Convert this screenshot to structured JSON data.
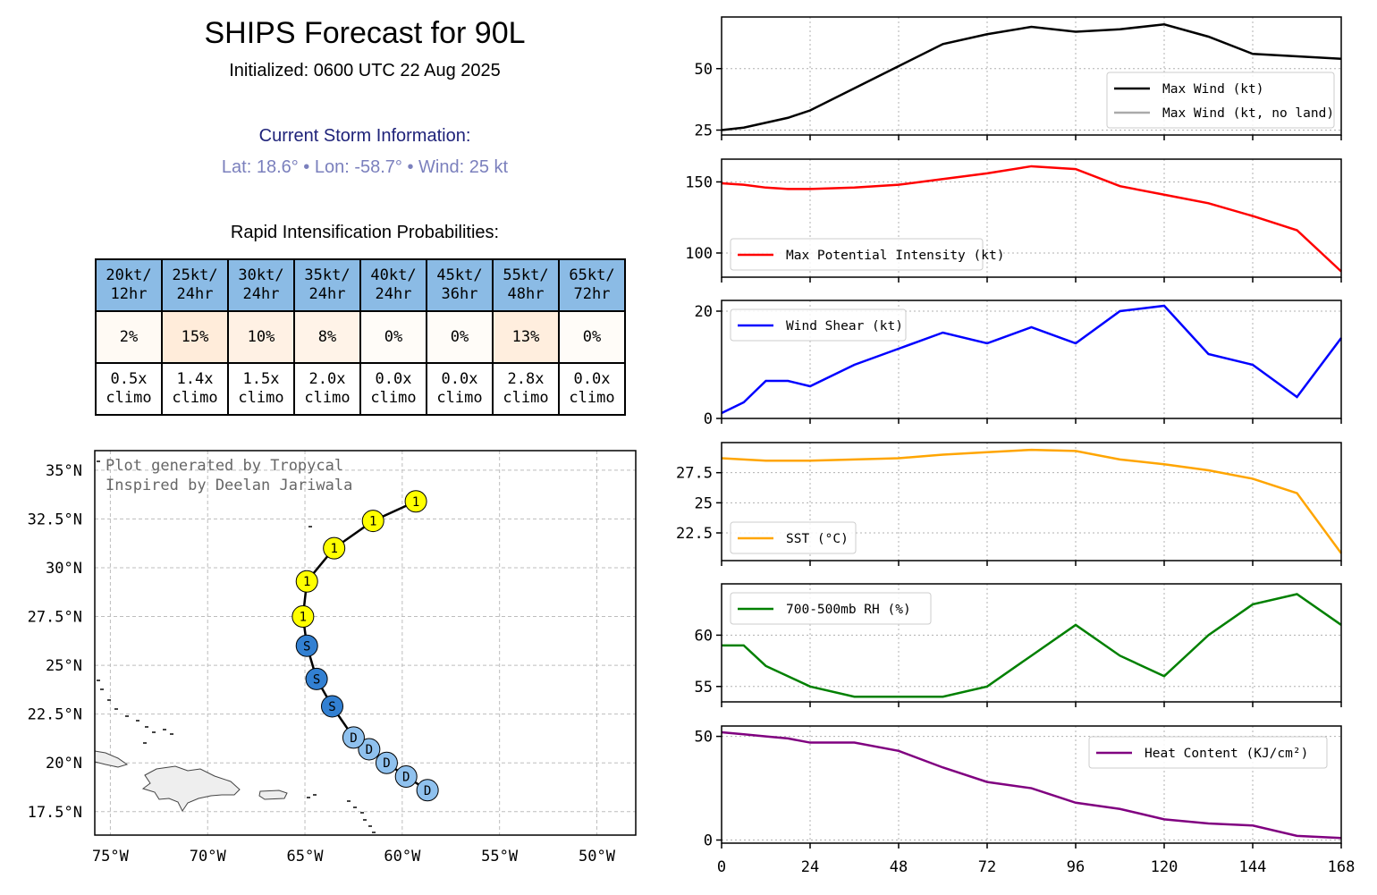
{
  "header": {
    "title": "SHIPS Forecast for 90L",
    "initialized": "Initialized: 0600 UTC 22 Aug 2025",
    "current_heading": "Current Storm Information:",
    "current_info": "Lat: 18.6°  • Lon: -58.7°  • Wind: 25 kt",
    "ri_heading": "Rapid Intensification Probabilities:"
  },
  "ri_table": {
    "columns": [
      "20kt/ 12hr",
      "25kt/ 24hr",
      "30kt/ 24hr",
      "35kt/ 24hr",
      "40kt/ 24hr",
      "45kt/ 36hr",
      "55kt/ 48hr",
      "65kt/ 72hr"
    ],
    "probabilities": [
      "2%",
      "15%",
      "10%",
      "8%",
      "0%",
      "0%",
      "13%",
      "0%"
    ],
    "prob_values": [
      2,
      15,
      10,
      8,
      0,
      0,
      13,
      0
    ],
    "climo": [
      "0.5x climo",
      "1.4x climo",
      "1.5x climo",
      "2.0x climo",
      "0.0x climo",
      "0.0x climo",
      "2.8x climo",
      "0.0x climo"
    ]
  },
  "map": {
    "credit_line1": "Plot generated by Tropycal",
    "credit_line2": "Inspired by Deelan Jariwala",
    "lon_labels": [
      "75°W",
      "70°W",
      "65°W",
      "60°W",
      "55°W",
      "50°W"
    ],
    "lon_values": [
      -75,
      -70,
      -65,
      -60,
      -55,
      -50
    ],
    "lat_labels": [
      "35°N",
      "32.5°N",
      "30°N",
      "27.5°N",
      "25°N",
      "22.5°N",
      "20°N",
      "17.5°N"
    ],
    "lat_values": [
      35,
      32.5,
      30,
      27.5,
      25,
      22.5,
      20,
      17.5
    ],
    "track": [
      {
        "lat": 18.6,
        "lon": -58.7,
        "label": "D"
      },
      {
        "lat": 19.3,
        "lon": -59.8,
        "label": "D"
      },
      {
        "lat": 20.0,
        "lon": -60.8,
        "label": "D"
      },
      {
        "lat": 20.7,
        "lon": -61.7,
        "label": "D"
      },
      {
        "lat": 21.3,
        "lon": -62.5,
        "label": "D"
      },
      {
        "lat": 22.9,
        "lon": -63.6,
        "label": "S"
      },
      {
        "lat": 24.3,
        "lon": -64.4,
        "label": "S"
      },
      {
        "lat": 26.0,
        "lon": -64.9,
        "label": "S"
      },
      {
        "lat": 27.5,
        "lon": -65.1,
        "label": "1"
      },
      {
        "lat": 29.3,
        "lon": -64.9,
        "label": "1"
      },
      {
        "lat": 31.0,
        "lon": -63.5,
        "label": "1"
      },
      {
        "lat": 32.4,
        "lon": -61.5,
        "label": "1"
      },
      {
        "lat": 33.4,
        "lon": -59.3,
        "label": "1"
      }
    ],
    "colors": {
      "D": "#8fc1ee",
      "S": "#3280d2",
      "1": "#ffff00"
    }
  },
  "chart_data": [
    {
      "type": "line",
      "series": [
        {
          "name": "Max Wind (kt)",
          "color": "#000000",
          "x": [
            0,
            6,
            12,
            18,
            24,
            36,
            48,
            60,
            72,
            84,
            96,
            108,
            120,
            132,
            144,
            156,
            168
          ],
          "values": [
            25,
            26,
            28,
            30,
            33,
            42,
            51,
            60,
            64,
            67,
            65,
            66,
            68,
            63,
            56,
            55,
            54
          ]
        },
        {
          "name": "Max Wind (kt, no land)",
          "color": "#aaaaaa",
          "x": [],
          "values": []
        }
      ],
      "yticks": [
        25,
        50
      ],
      "ylim": [
        23,
        71
      ],
      "xlim": [
        0,
        168
      ],
      "legend": "lower-right",
      "grid": true
    },
    {
      "type": "line",
      "series": [
        {
          "name": "Max Potential Intensity (kt)",
          "color": "#ff0000",
          "x": [
            0,
            6,
            12,
            18,
            24,
            36,
            48,
            60,
            72,
            84,
            96,
            108,
            120,
            132,
            144,
            156,
            168
          ],
          "values": [
            149,
            148,
            146,
            145,
            145,
            146,
            148,
            152,
            156,
            161,
            159,
            147,
            141,
            135,
            126,
            116,
            87
          ]
        },
        {
          "name": "",
          "color": "#ff0000",
          "x": [],
          "values": []
        }
      ],
      "yticks": [
        100,
        150
      ],
      "ylim": [
        83,
        166
      ],
      "xlim": [
        0,
        168
      ],
      "legend": "lower-left",
      "grid": true
    },
    {
      "type": "line",
      "series": [
        {
          "name": "Wind Shear (kt)",
          "color": "#0000ff",
          "x": [
            0,
            6,
            12,
            18,
            24,
            36,
            48,
            60,
            72,
            84,
            96,
            108,
            120,
            132,
            144,
            156,
            168
          ],
          "values": [
            1,
            3,
            7,
            7,
            6,
            10,
            13,
            16,
            14,
            17,
            14,
            20,
            21,
            12,
            10,
            4,
            15
          ]
        }
      ],
      "yticks": [
        0,
        20
      ],
      "ylim": [
        0,
        22
      ],
      "xlim": [
        0,
        168
      ],
      "legend": "upper-left",
      "grid": true
    },
    {
      "type": "line",
      "series": [
        {
          "name": "SST (°C)",
          "color": "#ffa500",
          "x": [
            0,
            12,
            24,
            36,
            48,
            60,
            72,
            84,
            96,
            108,
            120,
            132,
            144,
            156,
            168
          ],
          "values": [
            28.7,
            28.5,
            28.5,
            28.6,
            28.7,
            29.0,
            29.2,
            29.4,
            29.3,
            28.6,
            28.2,
            27.7,
            27.0,
            25.8,
            20.8
          ]
        }
      ],
      "yticks": [
        22.5,
        25.0,
        27.5
      ],
      "ylim": [
        20.2,
        30.0
      ],
      "xlim": [
        0,
        168
      ],
      "legend": "lower-left",
      "grid": true
    },
    {
      "type": "line",
      "series": [
        {
          "name": "700-500mb RH (%)",
          "color": "#008000",
          "x": [
            0,
            6,
            12,
            24,
            36,
            48,
            60,
            72,
            84,
            96,
            108,
            120,
            132,
            144,
            156,
            168
          ],
          "values": [
            59,
            59,
            57,
            55,
            54,
            54,
            54,
            55,
            58,
            61,
            58,
            56,
            60,
            63,
            64,
            61
          ]
        }
      ],
      "yticks": [
        55,
        60
      ],
      "ylim": [
        53.5,
        65.0
      ],
      "xlim": [
        0,
        168
      ],
      "legend": "upper-left",
      "grid": true
    },
    {
      "type": "line",
      "series": [
        {
          "name": "Heat Content (KJ/cm²)",
          "color": "#800080",
          "x": [
            0,
            6,
            12,
            18,
            24,
            36,
            48,
            60,
            72,
            84,
            96,
            108,
            120,
            132,
            144,
            156,
            168
          ],
          "values": [
            52,
            51,
            50,
            49,
            47,
            47,
            43,
            35,
            28,
            25,
            18,
            15,
            10,
            8,
            7,
            2,
            1
          ]
        }
      ],
      "yticks": [
        0,
        50
      ],
      "ylim": [
        -1.5,
        55
      ],
      "xlim": [
        0,
        168
      ],
      "legend": "upper-right",
      "grid": true
    }
  ],
  "shared_xticks": [
    0,
    24,
    48,
    72,
    96,
    120,
    144,
    168
  ]
}
